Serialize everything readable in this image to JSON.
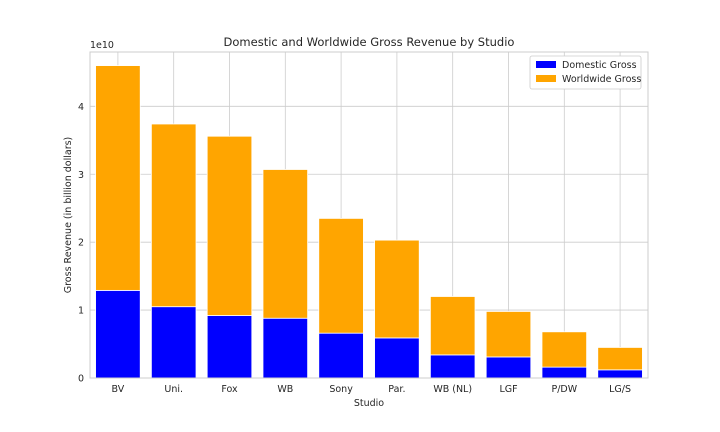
{
  "chart_data": {
    "type": "bar",
    "stacked": true,
    "title": "Domestic and Worldwide Gross Revenue by Studio",
    "xlabel": "Studio",
    "ylabel": "Gross Revenue (in billion dollars)",
    "y_offset_text": "1e10",
    "y_scale": 10000000000,
    "ylim": [
      0,
      4.8
    ],
    "yticks": [
      0,
      1,
      2,
      3,
      4
    ],
    "grid": true,
    "legend_position": "top-right",
    "categories": [
      "BV",
      "Uni.",
      "Fox",
      "WB",
      "Sony",
      "Par.",
      "WB (NL)",
      "LGF",
      "P/DW",
      "LG/S"
    ],
    "series": [
      {
        "name": "Domestic Gross",
        "color": "#0000ff",
        "values": [
          1.29,
          1.05,
          0.92,
          0.88,
          0.66,
          0.59,
          0.34,
          0.31,
          0.16,
          0.12
        ]
      },
      {
        "name": "Worldwide Gross",
        "color": "#ffa500",
        "values": [
          3.31,
          2.69,
          2.64,
          2.19,
          1.69,
          1.44,
          0.86,
          0.67,
          0.52,
          0.33
        ]
      }
    ]
  }
}
